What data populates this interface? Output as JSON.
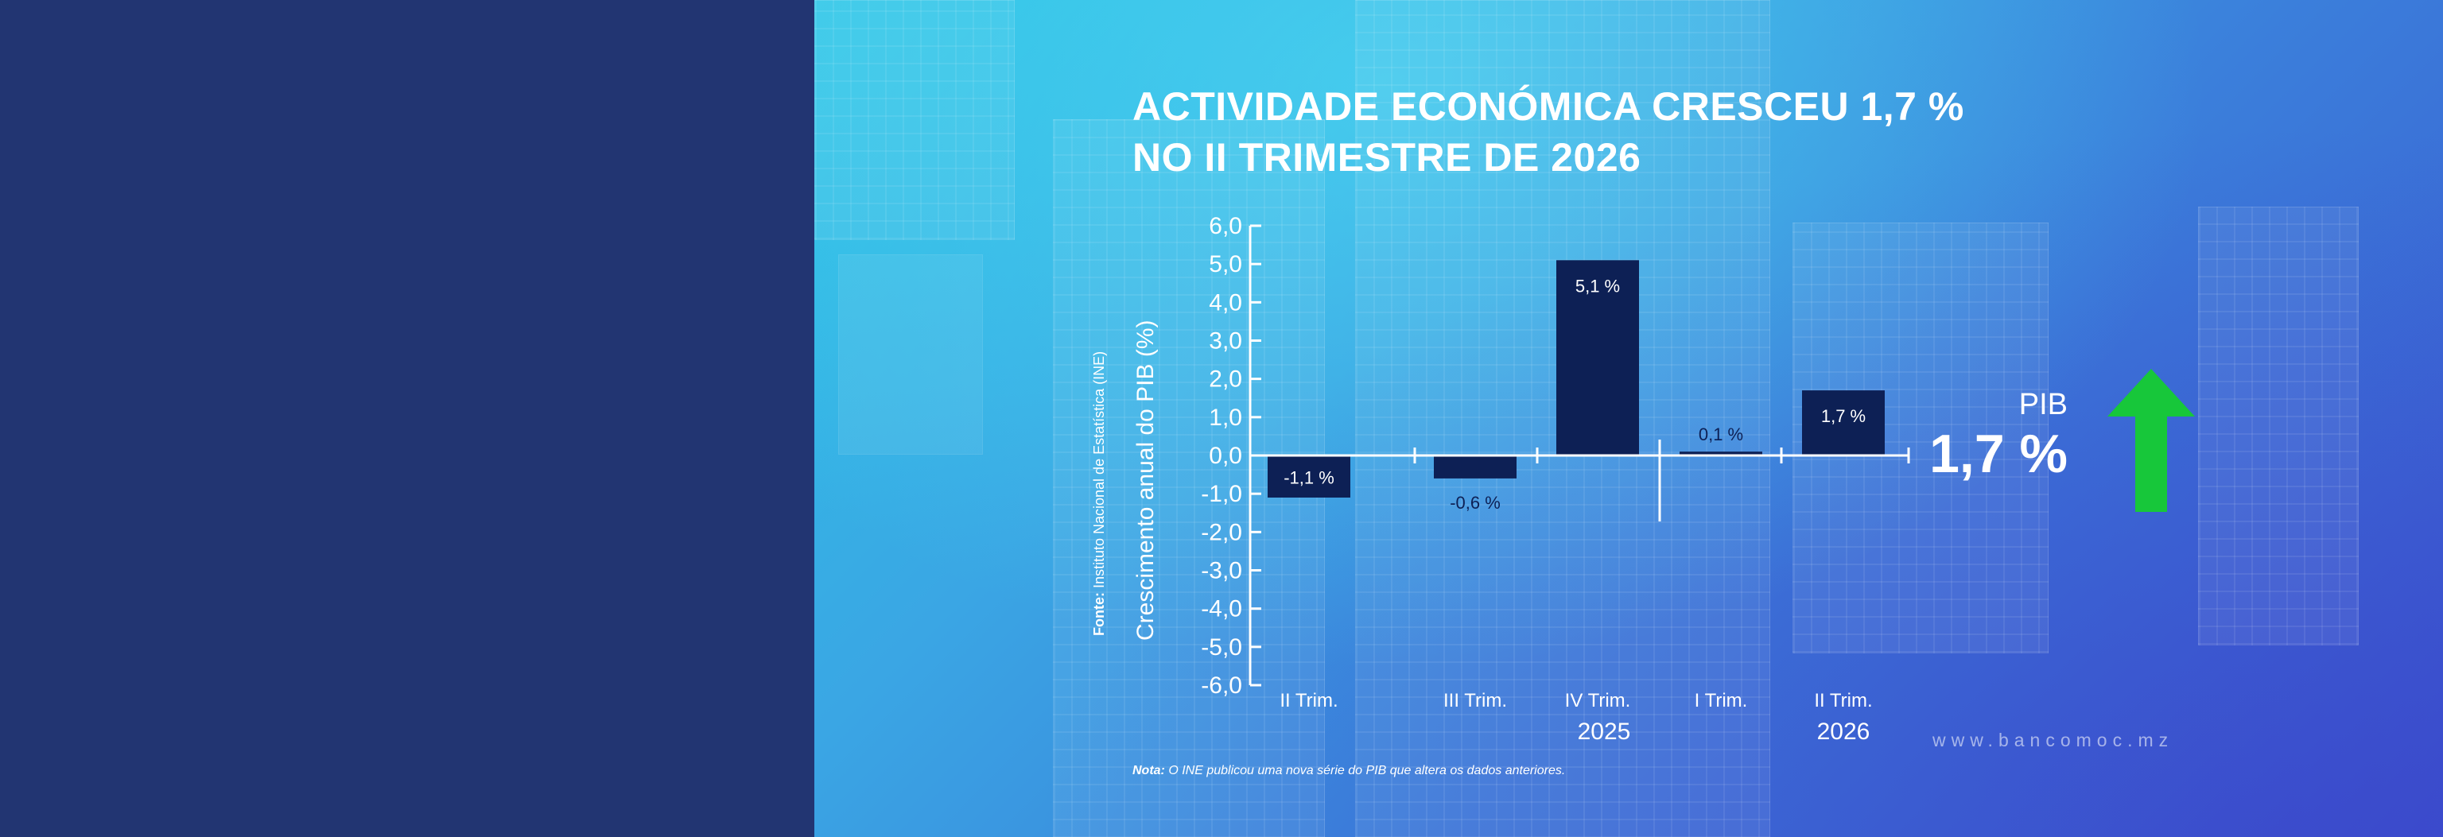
{
  "title": "ACTIVIDADE ECONÓMICA CRESCEU 1,7 %\nNO II TRIMESTRE DE 2026",
  "source": {
    "label": "Fonte:",
    "text": " Instituto Nacional de Estatística (INE)"
  },
  "note": {
    "label": "Nota:",
    "text": " O INE publicou uma nova série do PIB que altera os dados anteriores."
  },
  "website": "www.bancomoc.mz",
  "highlight": {
    "label": "PIB",
    "value": "1,7 %",
    "direction": "up",
    "arrow_color": "#17c73a"
  },
  "colors": {
    "bar": "#0d2055",
    "axis": "#ffffff",
    "text": "#ffffff"
  },
  "chart_data": {
    "type": "bar",
    "title": "ACTIVIDADE ECONÓMICA CRESCEU 1,7 % NO II TRIMESTRE DE 2026",
    "ylabel": "Crescimento anual do PIB (%)",
    "xlabel": "",
    "ylim": [
      -6.0,
      6.0
    ],
    "yticks": [
      -6.0,
      -5.0,
      -4.0,
      -3.0,
      -2.0,
      -1.0,
      0.0,
      1.0,
      2.0,
      3.0,
      4.0,
      5.0,
      6.0
    ],
    "ytick_labels": [
      "-6,0",
      "-5,0",
      "-4,0",
      "-3,0",
      "-2,0",
      "-1,0",
      "0,0",
      "1,0",
      "2,0",
      "3,0",
      "4,0",
      "5,0",
      "6,0"
    ],
    "categories": [
      "II Trim.",
      "III Trim.",
      "IV Trim.",
      "I Trim.",
      "II Trim."
    ],
    "values": [
      -1.1,
      -0.6,
      5.1,
      0.1,
      1.7
    ],
    "data_labels": [
      "-1,1 %",
      "-0,6 %",
      "5,1 %",
      "0,1 %",
      "1,7 %"
    ],
    "groups": [
      {
        "label": "2025",
        "categories": [
          "II Trim.",
          "III Trim.",
          "IV Trim."
        ]
      },
      {
        "label": "2026",
        "categories": [
          "I Trim.",
          "II Trim."
        ]
      }
    ],
    "grid": false,
    "legend": "none"
  }
}
